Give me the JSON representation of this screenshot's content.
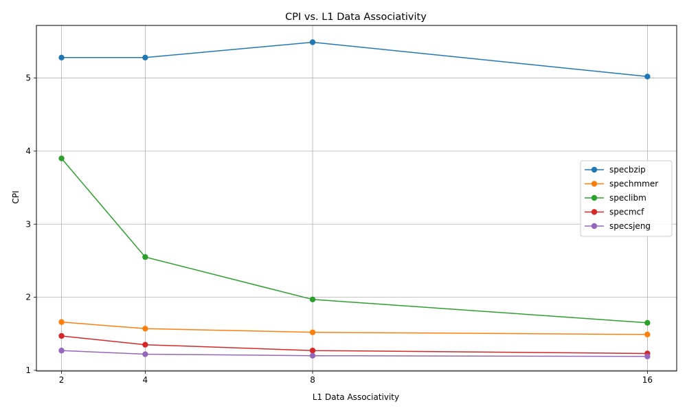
{
  "chart_data": {
    "type": "line",
    "title": "CPI vs. L1 Data Associativity",
    "xlabel": "L1 Data Associativity",
    "ylabel": "CPI",
    "x": [
      2,
      4,
      8,
      16
    ],
    "x_ticks": [
      "2",
      "4",
      "8",
      "16"
    ],
    "y_ticks": [
      "1",
      "2",
      "3",
      "4",
      "5"
    ],
    "xlim": [
      1.4,
      16.7
    ],
    "ylim": [
      0.99,
      5.72
    ],
    "grid": true,
    "legend_position": "center-right",
    "series": [
      {
        "name": "specbzip",
        "color": "#1f77b4",
        "values": [
          5.28,
          5.28,
          5.49,
          5.02
        ]
      },
      {
        "name": "spechmmer",
        "color": "#ff7f0e",
        "values": [
          1.66,
          1.57,
          1.52,
          1.49
        ]
      },
      {
        "name": "speclibm",
        "color": "#2ca02c",
        "values": [
          3.9,
          2.55,
          1.97,
          1.65
        ]
      },
      {
        "name": "specmcf",
        "color": "#d62728",
        "values": [
          1.47,
          1.35,
          1.27,
          1.23
        ]
      },
      {
        "name": "specsjeng",
        "color": "#9467bd",
        "values": [
          1.27,
          1.22,
          1.2,
          1.19
        ]
      }
    ]
  }
}
